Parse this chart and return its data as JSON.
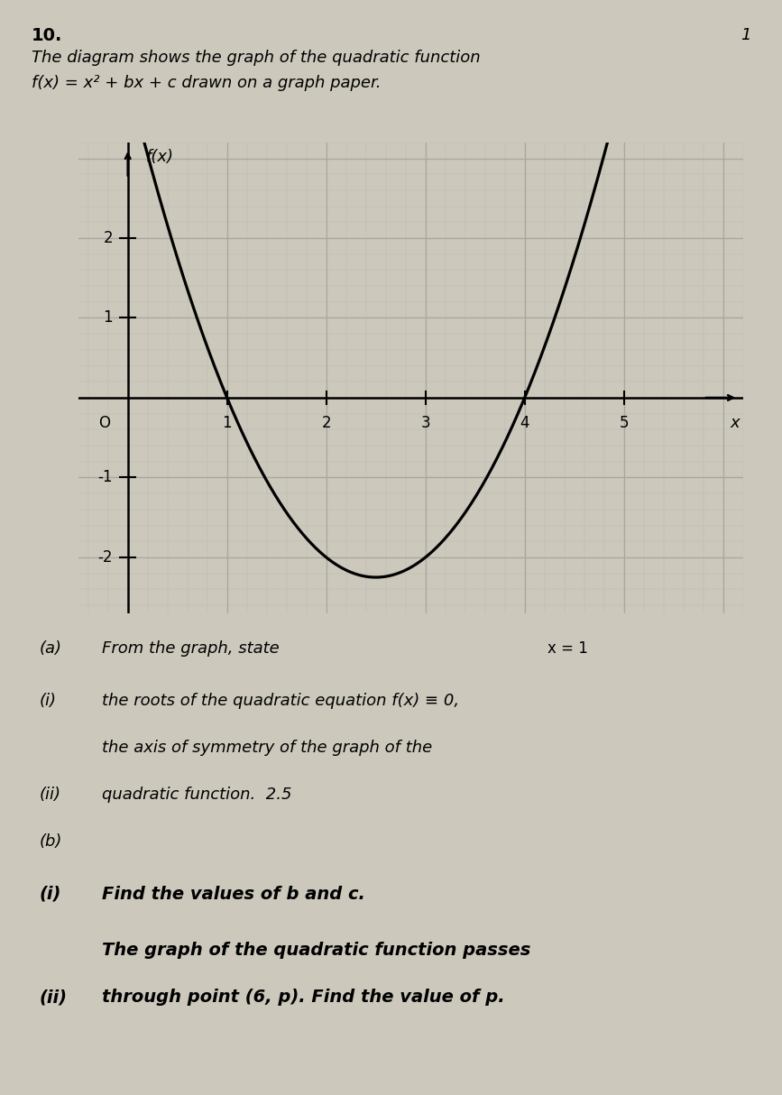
{
  "problem_number": "10.",
  "page_number": "1",
  "intro_text_line1": "The diagram shows the graph of the quadratic function",
  "intro_text_line2": "f(x) = x² + bx + c drawn on a graph paper.",
  "axis_label_y": "f(x)",
  "axis_label_x": "x",
  "x_ticks": [
    1,
    2,
    3,
    4,
    5
  ],
  "y_ticks": [
    -2,
    -1,
    1,
    2
  ],
  "x_tick_label_O": "O",
  "xlim": [
    -0.5,
    6.2
  ],
  "ylim": [
    -2.7,
    3.2
  ],
  "func_coeffs": [
    1,
    -5,
    4
  ],
  "graph_color": "#000000",
  "background_color": "#ccc8bc",
  "grid_major_color": "#aaa89e",
  "grid_minor_color": "#bbb9b0",
  "part_a_label": "(a)",
  "part_a_text": "From the graph, state",
  "part_a_answer": "x = 1",
  "part_i_label": "(i)",
  "part_i_text": "the roots of the quadratic equation f(x) ≡ 0,",
  "part_i_text2": "the axis of symmetry of the graph of the",
  "part_ii_label": "(ii)",
  "part_ii_text": "quadratic function.  2.5",
  "part_b_label": "(b)",
  "part_b_i_label": "(i)",
  "part_b_i_text": "Find the values of b and c.",
  "part_b_ii_text1": "The graph of the quadratic function passes",
  "part_b_ii_label": "(ii)",
  "part_b_ii_text2": "through point (6, p). Find the value of p."
}
